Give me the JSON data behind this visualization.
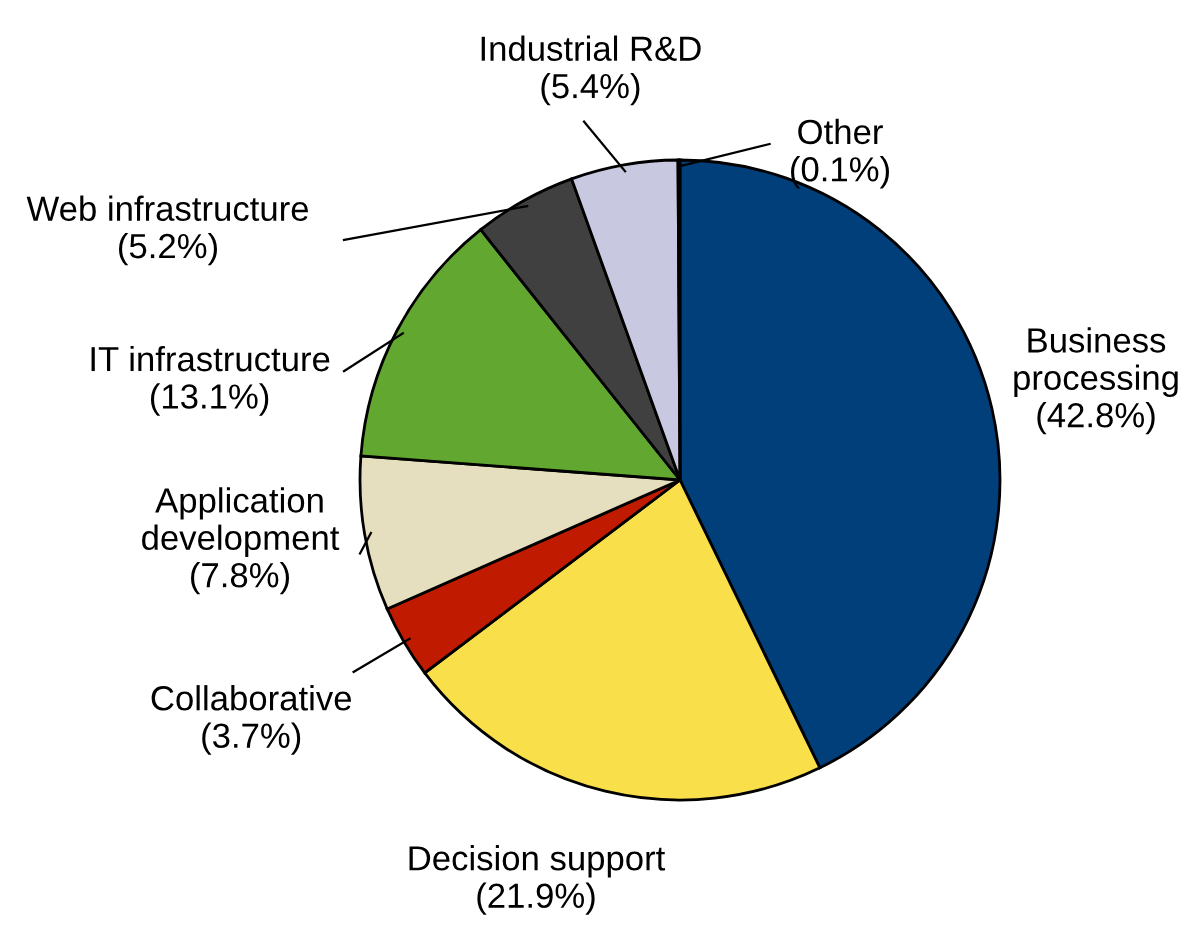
{
  "chart_data": {
    "type": "pie",
    "categories": [
      "Business\nprocessing",
      "Decision support",
      "Collaborative",
      "Application\ndevelopment",
      "IT infrastructure",
      "Web infrastructure",
      "Industrial R&D",
      "Other"
    ],
    "values": [
      42.8,
      21.9,
      3.7,
      7.8,
      13.1,
      5.2,
      5.4,
      0.1
    ],
    "value_labels": [
      "(42.8%)",
      "(21.9%)",
      "(3.7%)",
      "(7.8%)",
      "(13.1%)",
      "(5.2%)",
      "(5.4%)",
      "(0.1%)"
    ],
    "colors": [
      "#003f7a",
      "#f9df4a",
      "#c01a00",
      "#e6dfbf",
      "#62a830",
      "#404040",
      "#c8c8e0",
      "#9999bb"
    ]
  }
}
